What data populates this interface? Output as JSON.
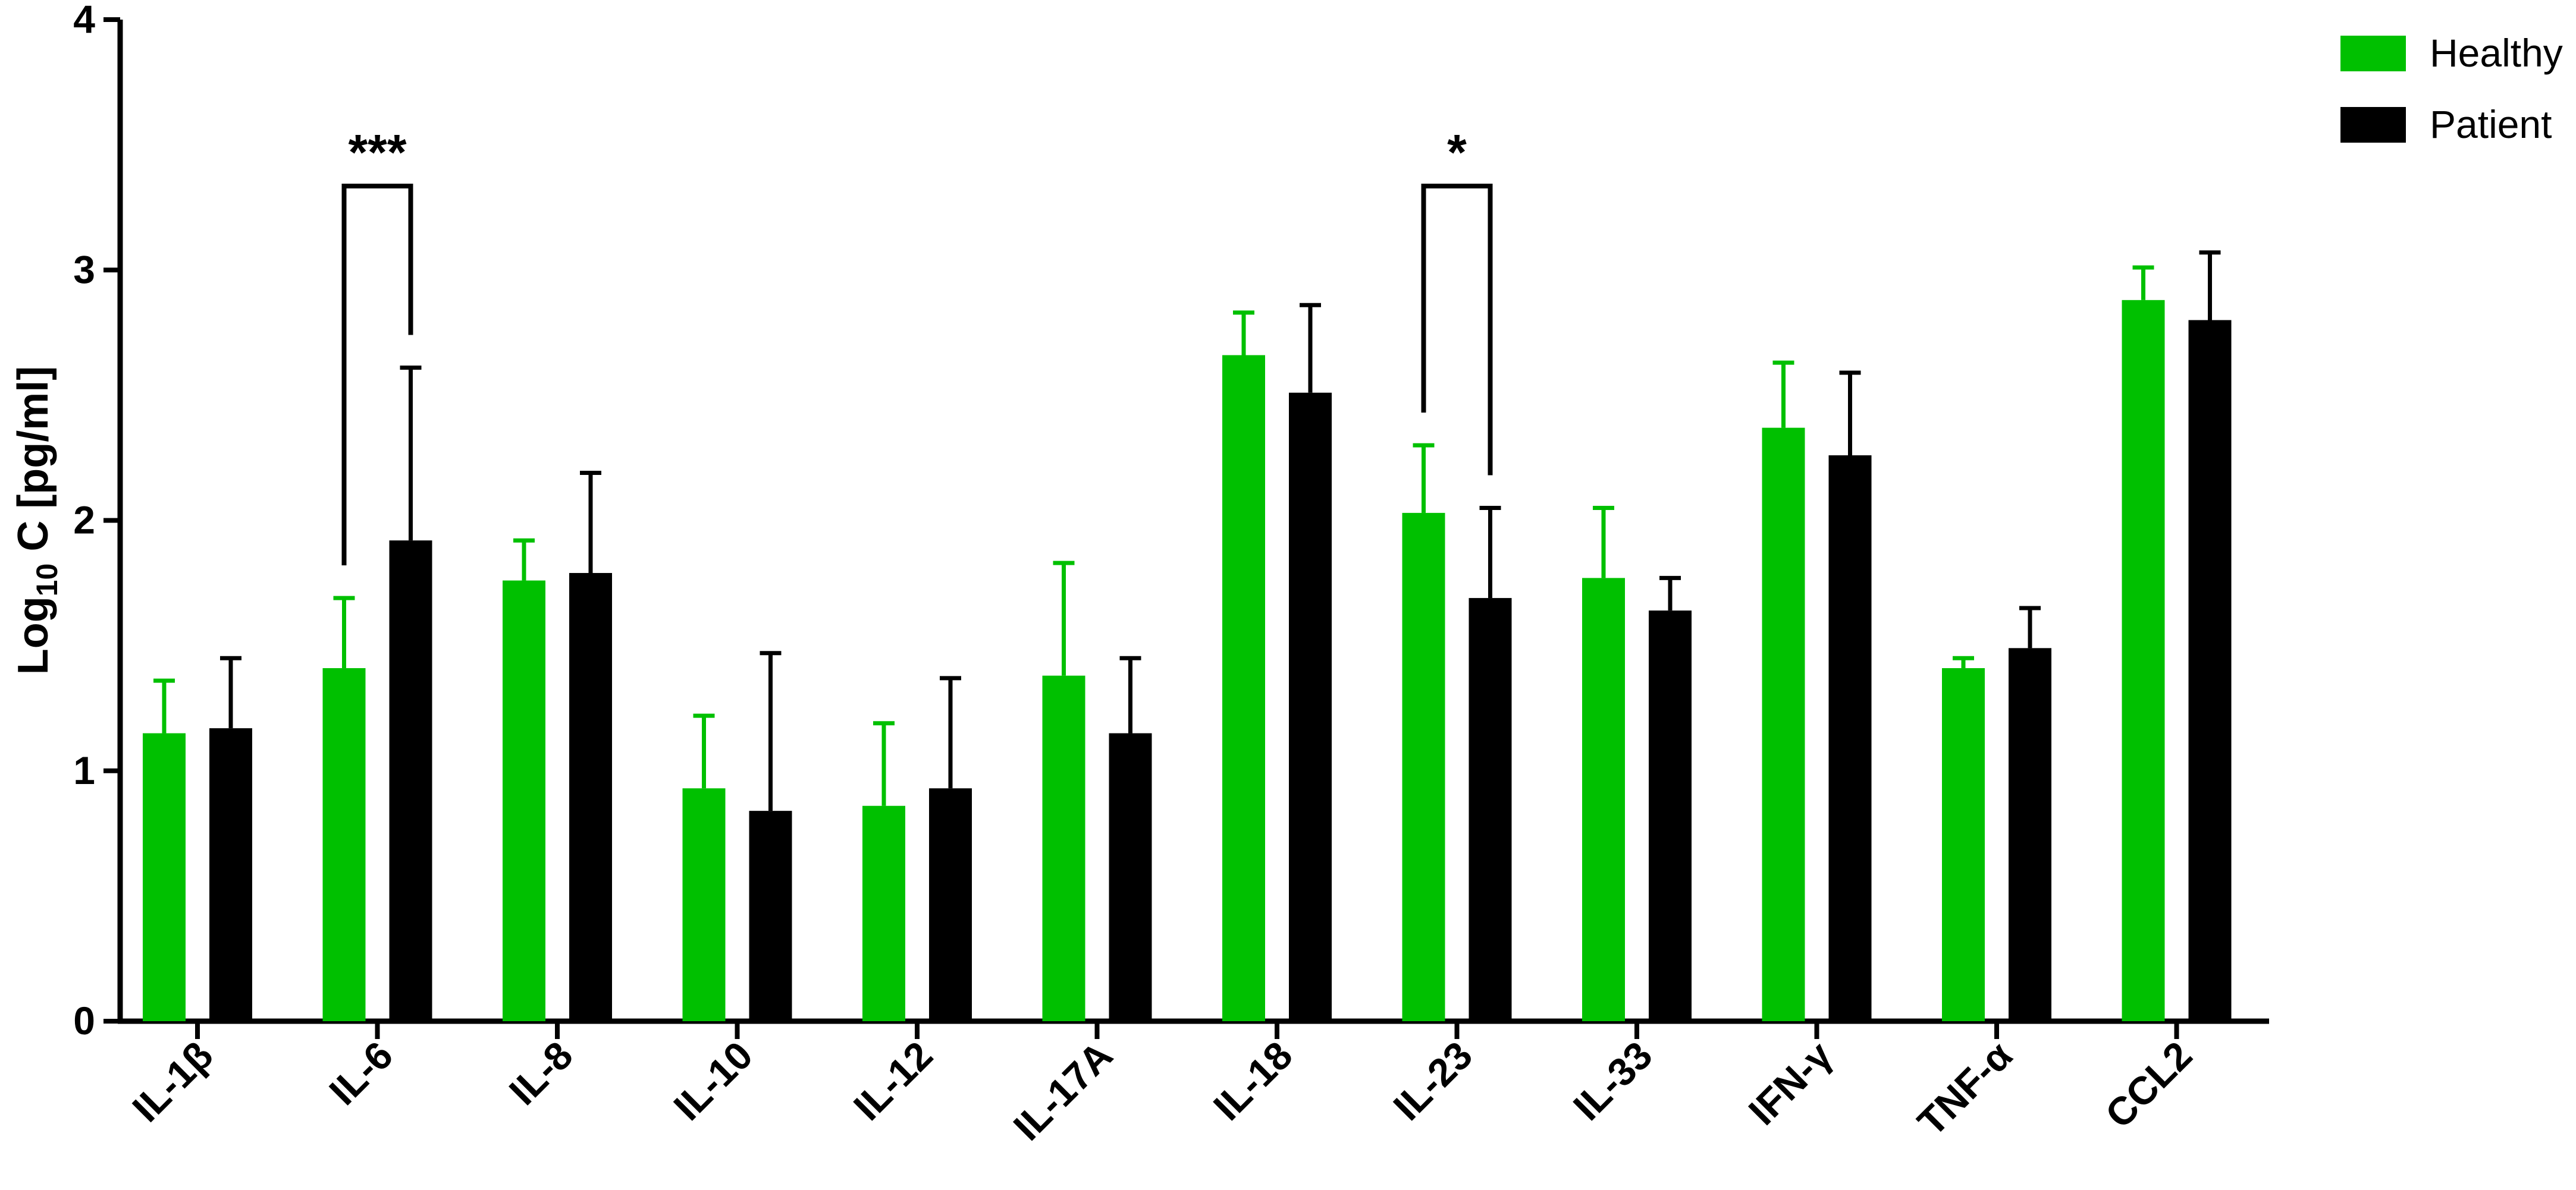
{
  "chart_data": {
    "type": "bar",
    "title": "",
    "xlabel": "",
    "ylabel": "Log10 C [pg/ml]",
    "ylabel_parts": {
      "pre": "Log",
      "sub": "10",
      "post": " C [pg/ml]"
    },
    "ylim": [
      0,
      4
    ],
    "yticks": [
      "0",
      "1",
      "2",
      "3",
      "4"
    ],
    "grid": false,
    "legend_position": "top-right",
    "categories": [
      "IL-1β",
      "IL-6",
      "IL-8",
      "IL-10",
      "IL-12",
      "IL-17A",
      "IL-18",
      "IL-23",
      "IL-33",
      "IFN-γ",
      "TNF-α",
      "CCL2"
    ],
    "series": [
      {
        "name": "Healthy",
        "color": "#00c000",
        "values": [
          1.15,
          1.41,
          1.76,
          0.93,
          0.86,
          1.38,
          2.66,
          2.03,
          1.77,
          2.37,
          1.41,
          2.88
        ],
        "error_upper": [
          1.36,
          1.69,
          1.92,
          1.22,
          1.19,
          1.83,
          2.83,
          2.3,
          2.05,
          2.63,
          1.45,
          3.01
        ]
      },
      {
        "name": "Patient",
        "color": "#000000",
        "values": [
          1.17,
          1.92,
          1.79,
          0.84,
          0.93,
          1.15,
          2.51,
          1.69,
          1.64,
          2.26,
          1.49,
          2.8
        ],
        "error_upper": [
          1.45,
          2.61,
          2.19,
          1.47,
          1.37,
          1.45,
          2.86,
          2.05,
          1.77,
          2.59,
          1.65,
          3.07
        ]
      }
    ],
    "annotations": [
      {
        "category": "IL-6",
        "text": "***"
      },
      {
        "category": "IL-23",
        "text": "*"
      }
    ]
  }
}
